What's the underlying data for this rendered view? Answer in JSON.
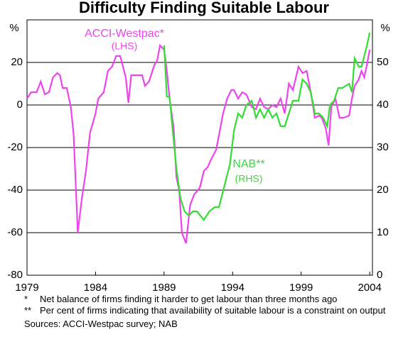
{
  "chart_data": {
    "type": "line",
    "title": "Difficulty Finding Suitable Labour",
    "y_unit": "%",
    "y2_unit": "%",
    "xlim": [
      1979,
      2004.2
    ],
    "xticks": [
      1979,
      1984,
      1989,
      1994,
      1999,
      2004
    ],
    "ylim": [
      -80,
      40
    ],
    "yticks": [
      -80,
      -60,
      -40,
      -20,
      0,
      20
    ],
    "y2lim": [
      0,
      60
    ],
    "y2ticks": [
      0,
      10,
      20,
      30,
      40,
      50
    ],
    "grid": true,
    "series": [
      {
        "name": "ACCI-Westpac*",
        "axis_label": "(LHS)",
        "color": "#ee44ee",
        "axis": "y",
        "x": [
          1979.0,
          1979.3,
          1979.7,
          1980.0,
          1980.3,
          1980.6,
          1980.9,
          1981.2,
          1981.4,
          1981.6,
          1981.9,
          1982.2,
          1982.4,
          1982.7,
          1983.0,
          1983.3,
          1983.6,
          1984.0,
          1984.2,
          1984.6,
          1984.9,
          1985.2,
          1985.5,
          1985.8,
          1986.2,
          1986.4,
          1986.6,
          1987.1,
          1987.4,
          1987.6,
          1987.9,
          1988.3,
          1988.5,
          1988.7,
          1989.0,
          1989.2,
          1989.4,
          1989.7,
          1989.9,
          1990.1,
          1990.3,
          1990.6,
          1990.9,
          1991.2,
          1991.6,
          1991.9,
          1992.2,
          1992.4,
          1992.8,
          1993.1,
          1993.3,
          1993.6,
          1993.9,
          1994.1,
          1994.4,
          1994.7,
          1995.0,
          1995.4,
          1995.7,
          1996.0,
          1996.3,
          1996.6,
          1996.9,
          1997.2,
          1997.5,
          1997.8,
          1998.1,
          1998.4,
          1998.8,
          1999.1,
          1999.4,
          1999.7,
          2000.0,
          2000.3,
          2000.5,
          2000.8,
          2001.0,
          2001.2,
          2001.5,
          2001.8,
          2002.1,
          2002.5,
          2002.7,
          2002.9,
          2003.2,
          2003.4,
          2003.6,
          2003.8,
          2004.0
        ],
        "values": [
          3,
          6,
          6,
          11,
          5,
          6,
          13,
          15,
          14,
          8,
          8,
          -1,
          -14,
          -60,
          -44,
          -31,
          -13,
          -4,
          3,
          6,
          16,
          18,
          23,
          23,
          13,
          1,
          14,
          14,
          14,
          9,
          11,
          19,
          21,
          28,
          26,
          16,
          3,
          -11,
          -34,
          -40,
          -60,
          -65,
          -47,
          -42,
          -39,
          -31,
          -29,
          -26,
          -21,
          -11,
          -4,
          3,
          7,
          7,
          3,
          6,
          5,
          -1,
          -2,
          3,
          -1,
          -2,
          0,
          -1,
          3,
          -4,
          10,
          7,
          18,
          15,
          16,
          6,
          -6,
          -5,
          -6,
          -11,
          -19,
          -1,
          3,
          -6,
          -6,
          -5,
          3,
          9,
          12,
          16,
          13,
          19,
          26
        ]
      },
      {
        "name": "NAB**",
        "axis_label": "(RHS)",
        "color": "#33dd33",
        "axis": "y2",
        "x": [
          1989.0,
          1989.2,
          1989.4,
          1989.6,
          1989.9,
          1990.2,
          1990.5,
          1990.8,
          1991.1,
          1991.4,
          1991.9,
          1992.3,
          1992.7,
          1993.0,
          1993.4,
          1993.8,
          1994.1,
          1994.4,
          1994.7,
          1995.0,
          1995.4,
          1995.7,
          1996.0,
          1996.3,
          1996.6,
          1996.9,
          1997.2,
          1997.5,
          1997.8,
          1998.1,
          1998.4,
          1998.8,
          1999.1,
          1999.4,
          1999.7,
          2000.0,
          2000.3,
          2000.6,
          2000.9,
          2001.1,
          2001.4,
          2001.7,
          2002.0,
          2002.5,
          2002.7,
          2002.9,
          2003.2,
          2003.4,
          2003.8,
          2004.0
        ],
        "values": [
          54,
          42,
          42,
          35,
          25,
          18,
          15,
          14,
          15,
          15,
          13,
          15,
          16,
          16,
          21,
          26,
          34,
          38,
          37,
          40,
          41,
          37,
          39,
          37,
          39,
          37,
          38,
          35,
          35,
          38,
          41,
          41,
          46,
          45,
          43,
          38,
          38,
          37,
          35,
          40,
          41,
          44,
          44,
          45,
          43,
          51,
          49,
          49,
          54,
          57
        ]
      }
    ],
    "notes": [
      {
        "marker": "*",
        "text": "Net balance of firms finding it harder to get labour than three months ago"
      },
      {
        "marker": "**",
        "text": "Per cent of firms indicating that availability of suitable labour is a constraint on output"
      }
    ],
    "source": "Sources: ACCI-Westpac survey; NAB"
  }
}
